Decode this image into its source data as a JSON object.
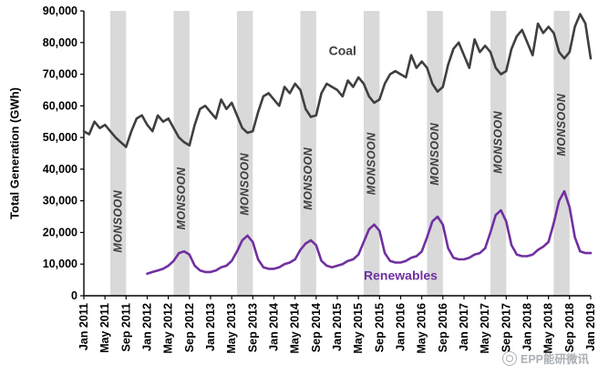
{
  "watermark": {
    "text": "EPP能研微讯"
  },
  "colors": {
    "coal": "#3F3F3F",
    "renewables": "#7030A0",
    "band": "#D9D9D9",
    "axis": "#000000"
  },
  "chart_data": {
    "type": "line",
    "title": "",
    "xlabel": "",
    "ylabel": "Total Generation (GWh)",
    "ylim": [
      0,
      90000
    ],
    "y_ticks": [
      0,
      10000,
      20000,
      30000,
      40000,
      50000,
      60000,
      70000,
      80000,
      90000
    ],
    "grid": false,
    "legend": "inline-labels",
    "x_range": "Jan 2011 to Jan 2019, monthly",
    "x_tick_every_months": 4,
    "x_tick_labels": [
      "Jan 2011",
      "May 2011",
      "Sep 2011",
      "Jan 2012",
      "May 2012",
      "Sep 2012",
      "Jan 2013",
      "May 2013",
      "Sep 2013",
      "Jan 2014",
      "May 2014",
      "Sep 2014",
      "Jan 2015",
      "May 2015",
      "Sep 2015",
      "Jan 2016",
      "May 2016",
      "Sep 2016",
      "Jan 2017",
      "May 2017",
      "Sep 2017",
      "Jan 2018",
      "May 2018",
      "Sep 2018",
      "Jan 2019"
    ],
    "series": [
      {
        "name": "Coal",
        "color": "#3F3F3F",
        "label_anchor": {
          "month_index": 49,
          "value": 76000
        },
        "values": [
          52000,
          51000,
          55000,
          53000,
          54000,
          52000,
          50000,
          48500,
          47000,
          52000,
          56000,
          57000,
          54000,
          52000,
          57000,
          55000,
          56000,
          53000,
          50000,
          48500,
          47500,
          54000,
          59000,
          60000,
          58000,
          56000,
          62000,
          59000,
          61000,
          57000,
          53000,
          51500,
          52000,
          58000,
          63000,
          64000,
          62000,
          60000,
          66000,
          64000,
          67000,
          65000,
          59000,
          56500,
          57000,
          64000,
          67000,
          66000,
          65000,
          63000,
          68000,
          66000,
          69000,
          67000,
          63000,
          61000,
          62000,
          67000,
          70000,
          71000,
          70000,
          69000,
          76000,
          72000,
          74000,
          72000,
          67000,
          64500,
          66000,
          73000,
          78000,
          80000,
          76000,
          72000,
          81000,
          77000,
          79000,
          77000,
          72000,
          70000,
          71000,
          78000,
          82000,
          84000,
          80000,
          76000,
          86000,
          83000,
          85000,
          83000,
          77000,
          75000,
          77000,
          85000,
          89000,
          86000,
          75000
        ]
      },
      {
        "name": "Renewables",
        "color": "#7030A0",
        "label_anchor": {
          "month_index": 60,
          "value": 5000
        },
        "values": [
          null,
          null,
          null,
          null,
          null,
          null,
          null,
          null,
          null,
          null,
          null,
          null,
          7000,
          7500,
          8000,
          8500,
          9500,
          11000,
          13500,
          14000,
          13000,
          9500,
          8000,
          7500,
          7500,
          8000,
          9000,
          9500,
          11000,
          14000,
          17500,
          19000,
          17000,
          11500,
          9000,
          8500,
          8500,
          9000,
          10000,
          10500,
          11500,
          14500,
          16500,
          17500,
          16000,
          11000,
          9500,
          9000,
          9500,
          10000,
          11000,
          11500,
          13000,
          17000,
          21000,
          22500,
          20500,
          13500,
          11000,
          10500,
          10500,
          11000,
          12000,
          12500,
          14000,
          18500,
          23500,
          25000,
          22500,
          15000,
          12000,
          11500,
          11500,
          12000,
          13000,
          13500,
          15000,
          20000,
          25500,
          27000,
          23500,
          16000,
          13000,
          12500,
          12500,
          13000,
          14500,
          15500,
          17000,
          23000,
          30000,
          33000,
          28000,
          18500,
          14000,
          13500,
          13500
        ]
      }
    ],
    "annotations": {
      "monsoon_bands": [
        {
          "label": "MONSOON",
          "from": "Jun 2011",
          "to": "Sep 2011",
          "from_index": 5,
          "to_index": 8
        },
        {
          "label": "MONSOON",
          "from": "Jun 2012",
          "to": "Sep 2012",
          "from_index": 17,
          "to_index": 20
        },
        {
          "label": "MONSOON",
          "from": "Jun 2013",
          "to": "Sep 2013",
          "from_index": 29,
          "to_index": 32
        },
        {
          "label": "MONSOON",
          "from": "Jun 2014",
          "to": "Sep 2014",
          "from_index": 41,
          "to_index": 44
        },
        {
          "label": "MONSOON",
          "from": "Jun 2015",
          "to": "Sep 2015",
          "from_index": 53,
          "to_index": 56
        },
        {
          "label": "MONSOON",
          "from": "Jun 2016",
          "to": "Sep 2016",
          "from_index": 65,
          "to_index": 68
        },
        {
          "label": "MONSOON",
          "from": "Jun 2017",
          "to": "Sep 2017",
          "from_index": 77,
          "to_index": 80
        },
        {
          "label": "MONSOON",
          "from": "Jun 2018",
          "to": "Sep 2018",
          "from_index": 89,
          "to_index": 92
        }
      ]
    }
  }
}
